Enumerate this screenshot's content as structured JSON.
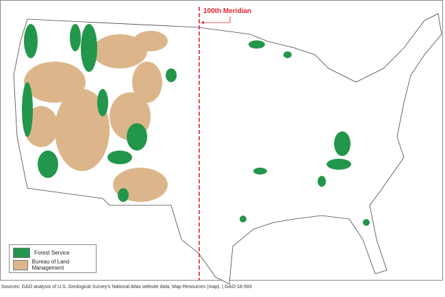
{
  "map": {
    "meridian_label": "100th Meridian",
    "legend": [
      {
        "label": "Forest Service",
        "color": "#22964a"
      },
      {
        "label": "Bureau of Land Management",
        "color": "#dcb68a"
      }
    ],
    "meridian_color": "#e0202a"
  },
  "source": "Sources: GAO analysis of U.S. Geological Survey's National Atlas website data; Map Resources (map).  |  GAO-18-593"
}
